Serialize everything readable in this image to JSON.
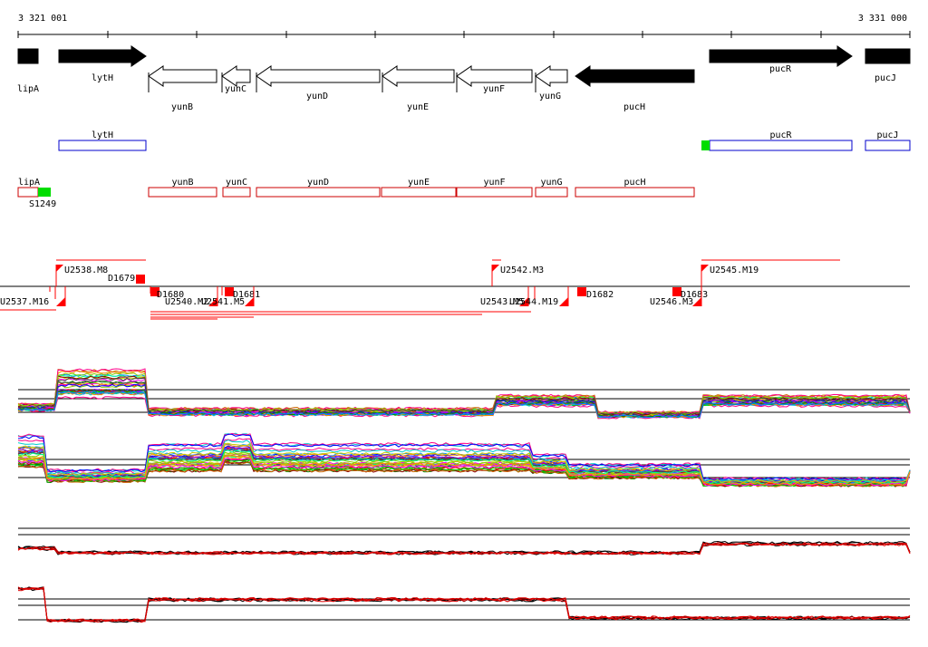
{
  "ruler": {
    "start_label": "3 321 001",
    "end_label": "3 331 000"
  },
  "colors": {
    "gene_solid": "#000000",
    "gene_outline": "#000000",
    "annotation_blue": "#0000cc",
    "annotation_red": "#cc0000",
    "feature_green": "#00dd00",
    "marker_red": "#ff0000",
    "track_black": "#000000",
    "track_red": "#dd0000"
  },
  "genes": [
    {
      "name": "lipA",
      "strand": "+",
      "style": "solid",
      "label_row": "upper"
    },
    {
      "name": "lytH",
      "strand": "+",
      "style": "solid",
      "label_row": "upper"
    },
    {
      "name": "yunB",
      "strand": "-",
      "style": "outline",
      "label_row": "lower"
    },
    {
      "name": "yunC",
      "strand": "-",
      "style": "outline",
      "label_row": "upper"
    },
    {
      "name": "yunD",
      "strand": "-",
      "style": "outline",
      "label_row": "middle"
    },
    {
      "name": "yunE",
      "strand": "-",
      "style": "outline",
      "label_row": "lower"
    },
    {
      "name": "yunF",
      "strand": "-",
      "style": "outline",
      "label_row": "middle"
    },
    {
      "name": "yunG",
      "strand": "-",
      "style": "outline",
      "label_row": "upper"
    },
    {
      "name": "pucH",
      "strand": "-",
      "style": "solid",
      "label_row": "lower"
    },
    {
      "name": "pucR",
      "strand": "+",
      "style": "solid",
      "label_row": "upper"
    },
    {
      "name": "pucJ",
      "strand": "+",
      "style": "solid",
      "label_row": "upper"
    }
  ],
  "blue_annotations": [
    "lytH",
    "pucR",
    "pucJ"
  ],
  "red_annotations": [
    "lipA",
    "yunB",
    "yunC",
    "yunD",
    "yunE",
    "yunF",
    "yunG",
    "pucH"
  ],
  "green_feature_label": "S1249",
  "upper_features": [
    "U2538.M8",
    "U2542.M3",
    "U2545.M19"
  ],
  "lower_features": [
    {
      "label": "D1679"
    },
    {
      "label": "D1680"
    },
    {
      "label": "D1681"
    },
    {
      "label": "D1682"
    },
    {
      "label": "D1683"
    },
    {
      "label": "U2537.M16"
    },
    {
      "label": "U2540.M2"
    },
    {
      "label": "U2541.M5"
    },
    {
      "label": "U2543.M5"
    },
    {
      "label": "U2544.M19"
    },
    {
      "label": "U2546.M3"
    }
  ],
  "expression_panels": [
    "multi-condition plus strand",
    "multi-condition minus strand",
    "summary plus strand",
    "summary minus strand"
  ]
}
